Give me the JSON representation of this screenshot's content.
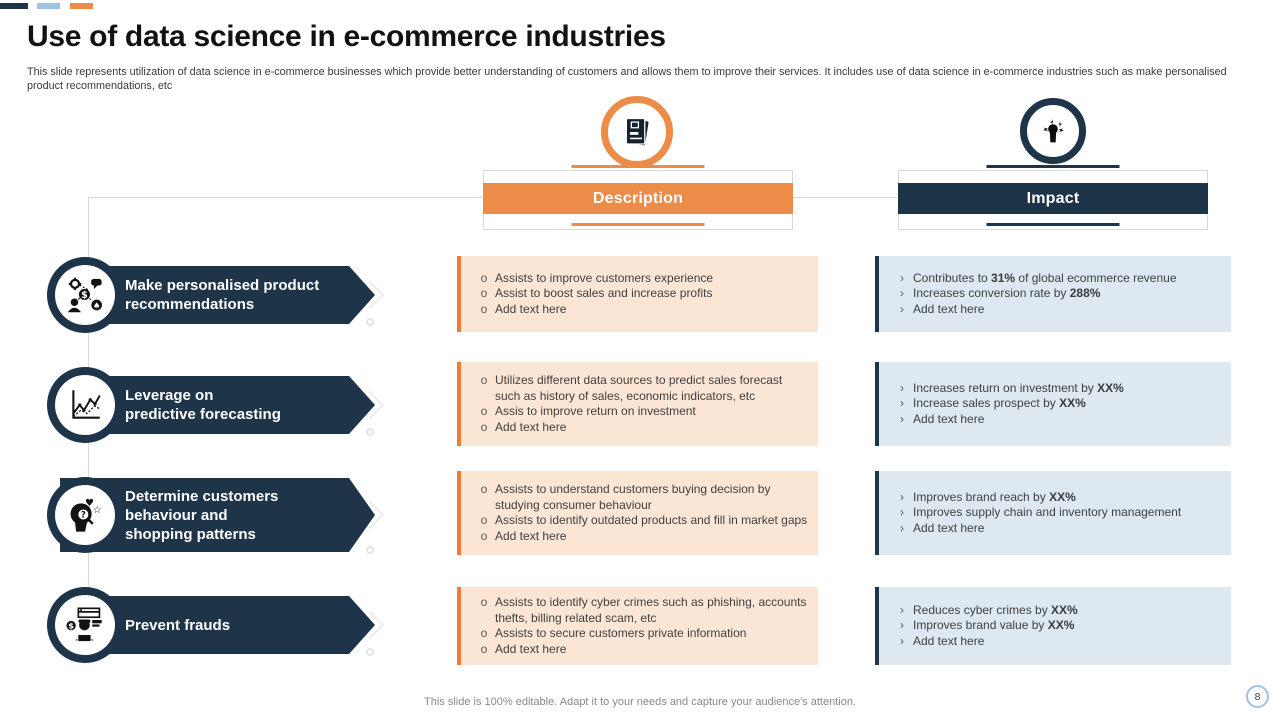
{
  "slide": {
    "title": "Use of data science in e-commerce industries",
    "subtitle": "This slide represents utilization of data science in e-commerce businesses which provide better understanding of customers and allows them to improve their services. It includes use of data science in e-commerce industries such as make personalised product recommendations, etc",
    "footer": "This slide is 100% editable. Adapt it to your needs and capture your audience's attention.",
    "page_number": "8"
  },
  "columns": {
    "description": {
      "label": "Description",
      "icon": "document-icon"
    },
    "impact": {
      "label": "Impact",
      "icon": "impact-fist-icon"
    }
  },
  "bullets": {
    "description_marker": "o",
    "impact_marker": "›"
  },
  "rows": [
    {
      "icon": "personalised-recommendations-icon",
      "label": "Make personalised product\nrecommendations",
      "description": [
        "Assists to improve customers experience",
        "Assist to boost sales and increase profits",
        "Add text here"
      ],
      "impact": [
        [
          "Contributes to ",
          {
            "b": "31%"
          },
          " of global ecommerce revenue"
        ],
        [
          "Increases conversion rate by ",
          {
            "b": "288%"
          }
        ],
        [
          "Add text here"
        ]
      ]
    },
    {
      "icon": "predictive-forecasting-icon",
      "label": "Leverage on\npredictive forecasting",
      "description": [
        "Utilizes different data sources to predict sales forecast such as history of sales, economic indicators, etc",
        "Assis to improve return on investment",
        "Add text here"
      ],
      "impact": [
        [
          "Increases return on investment by ",
          {
            "b": "XX%"
          }
        ],
        [
          "Increase sales prospect by ",
          {
            "b": "XX%"
          }
        ],
        [
          "Add text here"
        ]
      ]
    },
    {
      "icon": "customer-behaviour-icon",
      "label": "Determine customers\nbehaviour and\nshopping patterns",
      "description": [
        "Assists to understand customers buying decision by studying consumer behaviour",
        "Assists to identify outdated products and fill in market gaps",
        "Add text here"
      ],
      "impact": [
        [
          "Improves brand reach by ",
          {
            "b": "XX%"
          }
        ],
        [
          "Improves supply chain and inventory management"
        ],
        [
          "Add text here"
        ]
      ]
    },
    {
      "icon": "fraud-prevention-icon",
      "label": "Prevent frauds",
      "description": [
        "Assists to identify cyber crimes such as phishing, accounts thefts, billing related scam, etc",
        "Assists to secure customers private information",
        "Add text here"
      ],
      "impact": [
        [
          "Reduces cyber crimes by ",
          {
            "b": "XX%"
          }
        ],
        [
          "Improves brand value by ",
          {
            "b": "XX%"
          }
        ],
        [
          "Add text here"
        ]
      ]
    }
  ],
  "colors": {
    "navy": "#1E3449",
    "orange": "#ED8B49",
    "orange_border": "#ED7D31",
    "desc_bg": "#FBE6D6",
    "impact_bg": "#DEE8F0",
    "light_blue": "#9DC3E6",
    "line": "#D9D9D9"
  }
}
